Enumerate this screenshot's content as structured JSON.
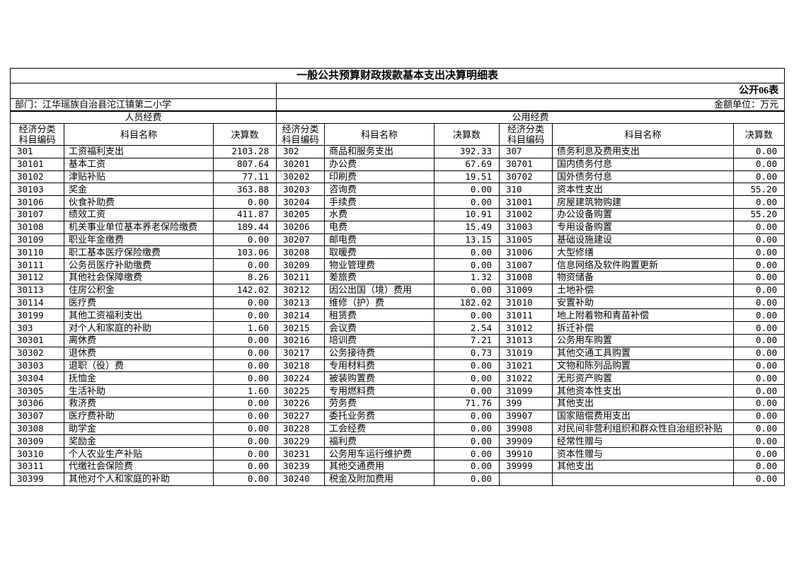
{
  "page": {
    "title": "一般公共预算财政拨款基本支出决算明细表",
    "form_no": "公开06表",
    "department": "部门：江华瑶族自治县沱江镇第二小学",
    "unit": "金额单位：万元"
  },
  "colors": {
    "text": "#000000",
    "border": "#000000",
    "background": "#ffffff"
  },
  "table": {
    "sections": {
      "personnel": "人员经费",
      "public": "公用经费"
    },
    "column_headers": {
      "code_line1": "经济分类",
      "code_line2": "科目编码",
      "subject": "科目名称",
      "amount": "决算数"
    },
    "groups": [
      {
        "section": "人员经费",
        "rows": [
          [
            "301",
            "工资福利支出",
            "2103.28"
          ],
          [
            "30101",
            "基本工资",
            "807.64"
          ],
          [
            "30102",
            "津贴补贴",
            "77.11"
          ],
          [
            "30103",
            "奖金",
            "363.88"
          ],
          [
            "30106",
            "伙食补助费",
            "0.00"
          ],
          [
            "30107",
            "绩效工资",
            "411.87"
          ],
          [
            "30108",
            "机关事业单位基本养老保险缴费",
            "189.44"
          ],
          [
            "30109",
            "职业年金缴费",
            "0.00"
          ],
          [
            "30110",
            "职工基本医疗保险缴费",
            "103.06"
          ],
          [
            "30111",
            "公务员医疗补助缴费",
            "0.00"
          ],
          [
            "30112",
            "其他社会保障缴费",
            "8.26"
          ],
          [
            "30113",
            "住房公积金",
            "142.02"
          ],
          [
            "30114",
            "医疗费",
            "0.00"
          ],
          [
            "30199",
            "其他工资福利支出",
            "0.00"
          ],
          [
            "303",
            "对个人和家庭的补助",
            "1.60"
          ],
          [
            "30301",
            "离休费",
            "0.00"
          ],
          [
            "30302",
            "退休费",
            "0.00"
          ],
          [
            "30303",
            "退职（役）费",
            "0.00"
          ],
          [
            "30304",
            "抚恤金",
            "0.00"
          ],
          [
            "30305",
            "生活补助",
            "1.60"
          ],
          [
            "30306",
            "救济费",
            "0.00"
          ],
          [
            "30307",
            "医疗费补助",
            "0.00"
          ],
          [
            "30308",
            "助学金",
            "0.00"
          ],
          [
            "30309",
            "奖励金",
            "0.00"
          ],
          [
            "30310",
            "个人农业生产补贴",
            "0.00"
          ],
          [
            "30311",
            "代缴社会保险费",
            "0.00"
          ],
          [
            "30399",
            "其他对个人和家庭的补助",
            "0.00"
          ]
        ]
      },
      {
        "section": "公用经费",
        "rows": [
          [
            "302",
            "商品和服务支出",
            "392.33"
          ],
          [
            "30201",
            "办公费",
            "67.69"
          ],
          [
            "30202",
            "印刷费",
            "19.51"
          ],
          [
            "30203",
            "咨询费",
            "0.00"
          ],
          [
            "30204",
            "手续费",
            "0.00"
          ],
          [
            "30205",
            "水费",
            "10.91"
          ],
          [
            "30206",
            "电费",
            "15.49"
          ],
          [
            "30207",
            "邮电费",
            "13.15"
          ],
          [
            "30208",
            "取暖费",
            "0.00"
          ],
          [
            "30209",
            "物业管理费",
            "0.00"
          ],
          [
            "30211",
            "差旅费",
            "1.32"
          ],
          [
            "30212",
            "因公出国（境）费用",
            "0.00"
          ],
          [
            "30213",
            "维修（护）费",
            "182.02"
          ],
          [
            "30214",
            "租赁费",
            "0.00"
          ],
          [
            "30215",
            "会议费",
            "2.54"
          ],
          [
            "30216",
            "培训费",
            "7.21"
          ],
          [
            "30217",
            "公务接待费",
            "0.73"
          ],
          [
            "30218",
            "专用材料费",
            "0.00"
          ],
          [
            "30224",
            "被装购置费",
            "0.00"
          ],
          [
            "30225",
            "专用燃料费",
            "0.00"
          ],
          [
            "30226",
            "劳务费",
            "71.76"
          ],
          [
            "30227",
            "委托业务费",
            "0.00"
          ],
          [
            "30228",
            "工会经费",
            "0.00"
          ],
          [
            "30229",
            "福利费",
            "0.00"
          ],
          [
            "30231",
            "公务用车运行维护费",
            "0.00"
          ],
          [
            "30239",
            "其他交通费用",
            "0.00"
          ],
          [
            "30240",
            "税金及附加费用",
            "0.00"
          ]
        ]
      },
      {
        "section": "公用经费",
        "rows": [
          [
            "307",
            "债务利息及费用支出",
            "0.00"
          ],
          [
            "30701",
            "国内债务付息",
            "0.00"
          ],
          [
            "30702",
            "国外债务付息",
            "0.00"
          ],
          [
            "310",
            "资本性支出",
            "55.20"
          ],
          [
            "31001",
            "房屋建筑物购建",
            "0.00"
          ],
          [
            "31002",
            "办公设备购置",
            "55.20"
          ],
          [
            "31003",
            "专用设备购置",
            "0.00"
          ],
          [
            "31005",
            "基础设施建设",
            "0.00"
          ],
          [
            "31006",
            "大型修缮",
            "0.00"
          ],
          [
            "31007",
            "信息网络及软件购置更新",
            "0.00"
          ],
          [
            "31008",
            "物资储备",
            "0.00"
          ],
          [
            "31009",
            "土地补偿",
            "0.00"
          ],
          [
            "31010",
            "安置补助",
            "0.00"
          ],
          [
            "31011",
            "地上附着物和青苗补偿",
            "0.00"
          ],
          [
            "31012",
            "拆迁补偿",
            "0.00"
          ],
          [
            "31013",
            "公务用车购置",
            "0.00"
          ],
          [
            "31019",
            "其他交通工具购置",
            "0.00"
          ],
          [
            "31021",
            "文物和陈列品购置",
            "0.00"
          ],
          [
            "31022",
            "无形资产购置",
            "0.00"
          ],
          [
            "31099",
            "其他资本性支出",
            "0.00"
          ],
          [
            "399",
            "其他支出",
            "0.00"
          ],
          [
            "39907",
            "国家赔偿费用支出",
            "0.00"
          ],
          [
            "39908",
            "对民间非营利组织和群众性自治组织补贴",
            "0.00"
          ],
          [
            "39909",
            "经常性赠与",
            "0.00"
          ],
          [
            "39910",
            "资本性赠与",
            "0.00"
          ],
          [
            "39999",
            "其他支出",
            "0.00"
          ],
          [
            "",
            "",
            "0.00"
          ]
        ]
      }
    ]
  }
}
